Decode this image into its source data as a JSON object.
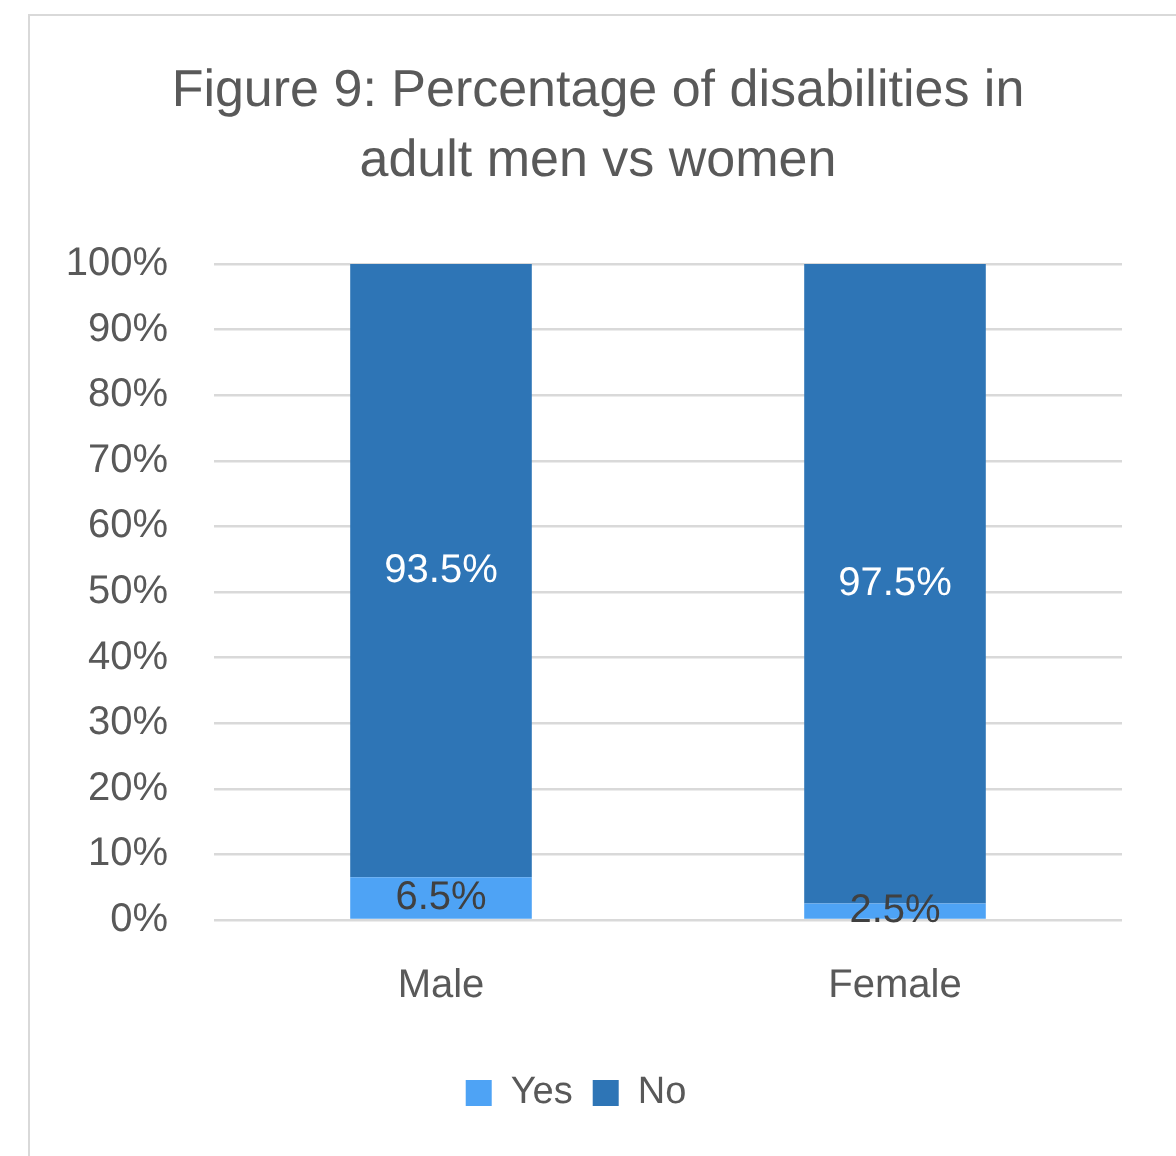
{
  "chart_data": {
    "type": "bar",
    "title": "Figure 9: Percentage of disabilities in adult men vs women",
    "categories": [
      "Male",
      "Female"
    ],
    "stacked": true,
    "series": [
      {
        "name": "Yes",
        "color": "#4ea3f5",
        "values": [
          6.5,
          2.5
        ],
        "value_labels": [
          "6.5%",
          "2.5%"
        ]
      },
      {
        "name": "No",
        "color": "#2e75b6",
        "values": [
          93.5,
          97.5
        ],
        "value_labels": [
          "93.5%",
          "97.5%"
        ]
      }
    ],
    "ylim": [
      0,
      100
    ],
    "yticks": [
      {
        "value": 0,
        "label": "0%"
      },
      {
        "value": 10,
        "label": "10%"
      },
      {
        "value": 20,
        "label": "20%"
      },
      {
        "value": 30,
        "label": "30%"
      },
      {
        "value": 40,
        "label": "40%"
      },
      {
        "value": 50,
        "label": "50%"
      },
      {
        "value": 60,
        "label": "60%"
      },
      {
        "value": 70,
        "label": "70%"
      },
      {
        "value": 80,
        "label": "80%"
      },
      {
        "value": 90,
        "label": "90%"
      },
      {
        "value": 100,
        "label": "100%"
      }
    ],
    "grid": "y",
    "legend": "bottom"
  }
}
